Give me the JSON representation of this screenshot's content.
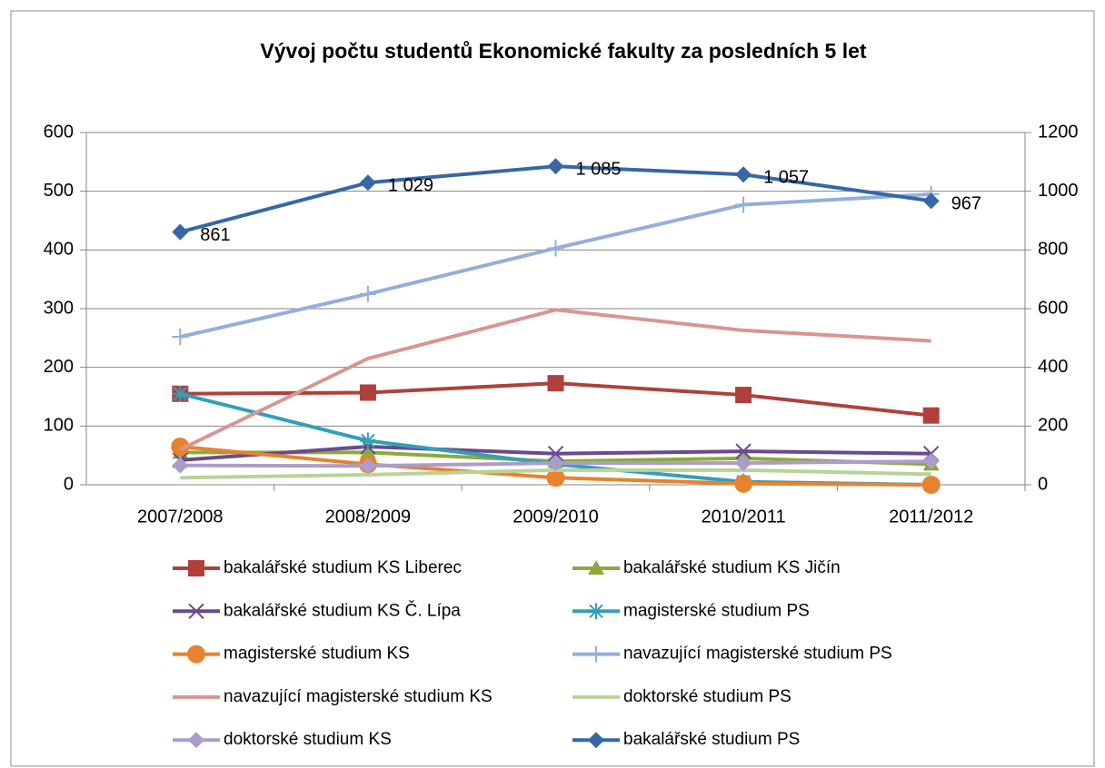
{
  "chart_data": {
    "type": "line",
    "title": "Vývoj počtu studentů Ekonomické  fakulty za posledních 5 let",
    "categories": [
      "2007/2008",
      "2008/2009",
      "2009/2010",
      "2010/2011",
      "2011/2012"
    ],
    "ylim": [
      0,
      600
    ],
    "yticks": [
      0,
      100,
      200,
      300,
      400,
      500,
      600
    ],
    "y2lim": [
      0,
      1200
    ],
    "y2ticks": [
      0,
      200,
      400,
      600,
      800,
      1000,
      1200
    ],
    "grid": true,
    "legend": "bottom",
    "series": [
      {
        "name": "bakalářské studium KS Liberec",
        "color": "#b1403d",
        "marker": "square",
        "values": [
          155,
          157,
          173,
          153,
          118
        ]
      },
      {
        "name": "bakalářské studium KS Jičín",
        "color": "#8caa3c",
        "marker": "triangle",
        "values": [
          55,
          55,
          40,
          45,
          35
        ]
      },
      {
        "name": "bakalářské studium KS Č. Lípa",
        "color": "#6a4a8c",
        "marker": "x",
        "values": [
          42,
          65,
          53,
          57,
          53
        ]
      },
      {
        "name": "magisterské studium PS",
        "color": "#31a0b8",
        "marker": "star",
        "values": [
          155,
          75,
          35,
          5,
          0
        ]
      },
      {
        "name": "magisterské studium KS",
        "color": "#e8822e",
        "marker": "circle",
        "values": [
          65,
          35,
          12,
          2,
          0
        ]
      },
      {
        "name": "navazující magisterské studium PS",
        "color": "#93afdc",
        "marker": "plus",
        "values": [
          252,
          325,
          403,
          477,
          495
        ]
      },
      {
        "name": "navazující magisterské studium KS",
        "color": "#d99591",
        "marker": "none",
        "values": [
          60,
          215,
          298,
          263,
          245
        ]
      },
      {
        "name": "doktorské studium PS",
        "color": "#b8d397",
        "marker": "none",
        "values": [
          12,
          17,
          25,
          25,
          18
        ]
      },
      {
        "name": "doktorské studium KS",
        "color": "#ad9ccb",
        "marker": "diamond",
        "values": [
          33,
          32,
          37,
          37,
          40
        ]
      },
      {
        "name": "bakalářské studium PS",
        "color": "#3667a6",
        "marker": "diamond",
        "axis": "y2",
        "values": [
          861,
          1029,
          1085,
          1057,
          967
        ],
        "value_labels": [
          "861",
          "1 029",
          "1 085",
          "1 057",
          "967"
        ]
      }
    ]
  }
}
